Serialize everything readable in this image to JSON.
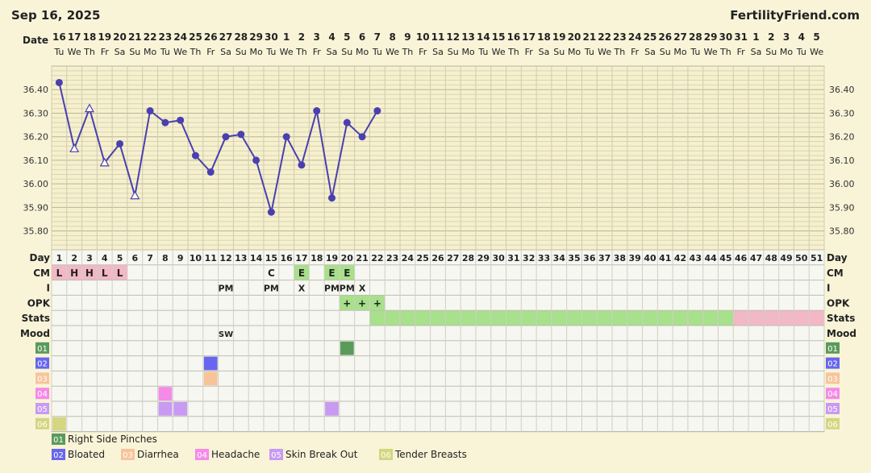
{
  "header": {
    "chart_date": "Sep 16, 2025",
    "brand": "FertilityFriend.com"
  },
  "chart_data": {
    "type": "line",
    "date_label": "Date",
    "date_numbers": [
      "16",
      "17",
      "18",
      "19",
      "20",
      "21",
      "22",
      "23",
      "24",
      "25",
      "26",
      "27",
      "28",
      "29",
      "30",
      "1",
      "2",
      "3",
      "4",
      "5",
      "6",
      "7",
      "8",
      "9",
      "10",
      "11",
      "12",
      "13",
      "14",
      "15",
      "16",
      "17",
      "18",
      "19",
      "20",
      "21",
      "22",
      "23",
      "24",
      "25",
      "26",
      "27",
      "28",
      "29",
      "30",
      "31",
      "1",
      "2",
      "3",
      "4",
      "5"
    ],
    "weekdays": [
      "Tu",
      "We",
      "Th",
      "Fr",
      "Sa",
      "Su",
      "Mo",
      "Tu",
      "We",
      "Th",
      "Fr",
      "Sa",
      "Su",
      "Mo",
      "Tu",
      "We",
      "Th",
      "Fr",
      "Sa",
      "Su",
      "Mo",
      "Tu",
      "We",
      "Th",
      "Fr",
      "Sa",
      "Su",
      "Mo",
      "Tu",
      "We",
      "Th",
      "Fr",
      "Sa",
      "Su",
      "Mo",
      "Tu",
      "We",
      "Th",
      "Fr",
      "Sa",
      "Su",
      "Mo",
      "Tu",
      "We",
      "Th",
      "Fr",
      "Sa",
      "Su",
      "Mo",
      "Tu",
      "We"
    ],
    "y_ticks": [
      "36.40",
      "36.30",
      "36.20",
      "36.10",
      "36.00",
      "35.90",
      "35.80"
    ],
    "ylim": [
      35.72,
      36.5
    ],
    "grid": true,
    "temperatures": [
      {
        "day": 1,
        "temp": 36.43,
        "marker": "dot"
      },
      {
        "day": 2,
        "temp": 36.15,
        "marker": "triangle"
      },
      {
        "day": 3,
        "temp": 36.32,
        "marker": "triangle"
      },
      {
        "day": 4,
        "temp": 36.09,
        "marker": "triangle"
      },
      {
        "day": 5,
        "temp": 36.17,
        "marker": "dot"
      },
      {
        "day": 6,
        "temp": 35.95,
        "marker": "triangle"
      },
      {
        "day": 7,
        "temp": 36.31,
        "marker": "dot"
      },
      {
        "day": 8,
        "temp": 36.26,
        "marker": "dot"
      },
      {
        "day": 9,
        "temp": 36.27,
        "marker": "dot"
      },
      {
        "day": 10,
        "temp": 36.12,
        "marker": "dot"
      },
      {
        "day": 11,
        "temp": 36.05,
        "marker": "dot"
      },
      {
        "day": 12,
        "temp": 36.2,
        "marker": "dot"
      },
      {
        "day": 13,
        "temp": 36.21,
        "marker": "dot"
      },
      {
        "day": 14,
        "temp": 36.1,
        "marker": "dot"
      },
      {
        "day": 15,
        "temp": 35.88,
        "marker": "dot"
      },
      {
        "day": 16,
        "temp": 36.2,
        "marker": "dot"
      },
      {
        "day": 17,
        "temp": 36.08,
        "marker": "dot"
      },
      {
        "day": 18,
        "temp": 36.31,
        "marker": "dot"
      },
      {
        "day": 19,
        "temp": 35.94,
        "marker": "dot"
      },
      {
        "day": 20,
        "temp": 36.26,
        "marker": "dot"
      },
      {
        "day": 21,
        "temp": 36.2,
        "marker": "dot"
      },
      {
        "day": 22,
        "temp": 36.31,
        "marker": "dot"
      }
    ],
    "line_color": "#4a3fb0",
    "rows": {
      "day_label": "Day",
      "cm_label": "CM",
      "i_label": "I",
      "opk_label": "OPK",
      "stats_label": "Stats",
      "mood_label": "Mood"
    },
    "cm_entries": [
      {
        "day": 1,
        "text": "L",
        "color": "#f2b8c6"
      },
      {
        "day": 2,
        "text": "H",
        "color": "#f2b8c6"
      },
      {
        "day": 3,
        "text": "H",
        "color": "#f2b8c6"
      },
      {
        "day": 4,
        "text": "L",
        "color": "#f2b8c6"
      },
      {
        "day": 5,
        "text": "L",
        "color": "#f2b8c6"
      },
      {
        "day": 15,
        "text": "C",
        "color": ""
      },
      {
        "day": 17,
        "text": "E",
        "color": "#a8e08c"
      },
      {
        "day": 19,
        "text": "E",
        "color": "#a8e08c"
      },
      {
        "day": 20,
        "text": "E",
        "color": "#a8e08c"
      }
    ],
    "i_entries": [
      {
        "day": 12,
        "text": "PM"
      },
      {
        "day": 15,
        "text": "PM"
      },
      {
        "day": 17,
        "text": "X"
      },
      {
        "day": 19,
        "text": "PM"
      },
      {
        "day": 20,
        "text": "PM"
      },
      {
        "day": 21,
        "text": "X"
      }
    ],
    "opk_entries": [
      {
        "day": 20,
        "text": "+",
        "color": "#a8e08c"
      },
      {
        "day": 21,
        "text": "+",
        "color": "#a8e08c"
      },
      {
        "day": 22,
        "text": "+",
        "color": "#a8e08c"
      }
    ],
    "stats_ranges": [
      {
        "start": 22,
        "end": 45,
        "color": "#a8e08c"
      },
      {
        "start": 46,
        "end": 51,
        "color": "#f2b8c6"
      }
    ],
    "mood_entries": [
      {
        "day": 12,
        "text": "SW"
      }
    ],
    "symptoms": [
      {
        "code": "01",
        "label": "Right Side Pinches",
        "color": "#5a9a5a",
        "days": [
          20
        ]
      },
      {
        "code": "02",
        "label": "Bloated",
        "color": "#6666ee",
        "days": [
          11
        ]
      },
      {
        "code": "03",
        "label": "Diarrhea",
        "color": "#f7c49a",
        "days": [
          11
        ]
      },
      {
        "code": "04",
        "label": "Headache",
        "color": "#f58ae8",
        "days": [
          8
        ]
      },
      {
        "code": "05",
        "label": "Skin Break Out",
        "color": "#c89af2",
        "days": [
          8,
          9,
          19
        ]
      },
      {
        "code": "06",
        "label": "Tender Breasts",
        "color": "#d4d680",
        "days": [
          1
        ]
      }
    ]
  }
}
